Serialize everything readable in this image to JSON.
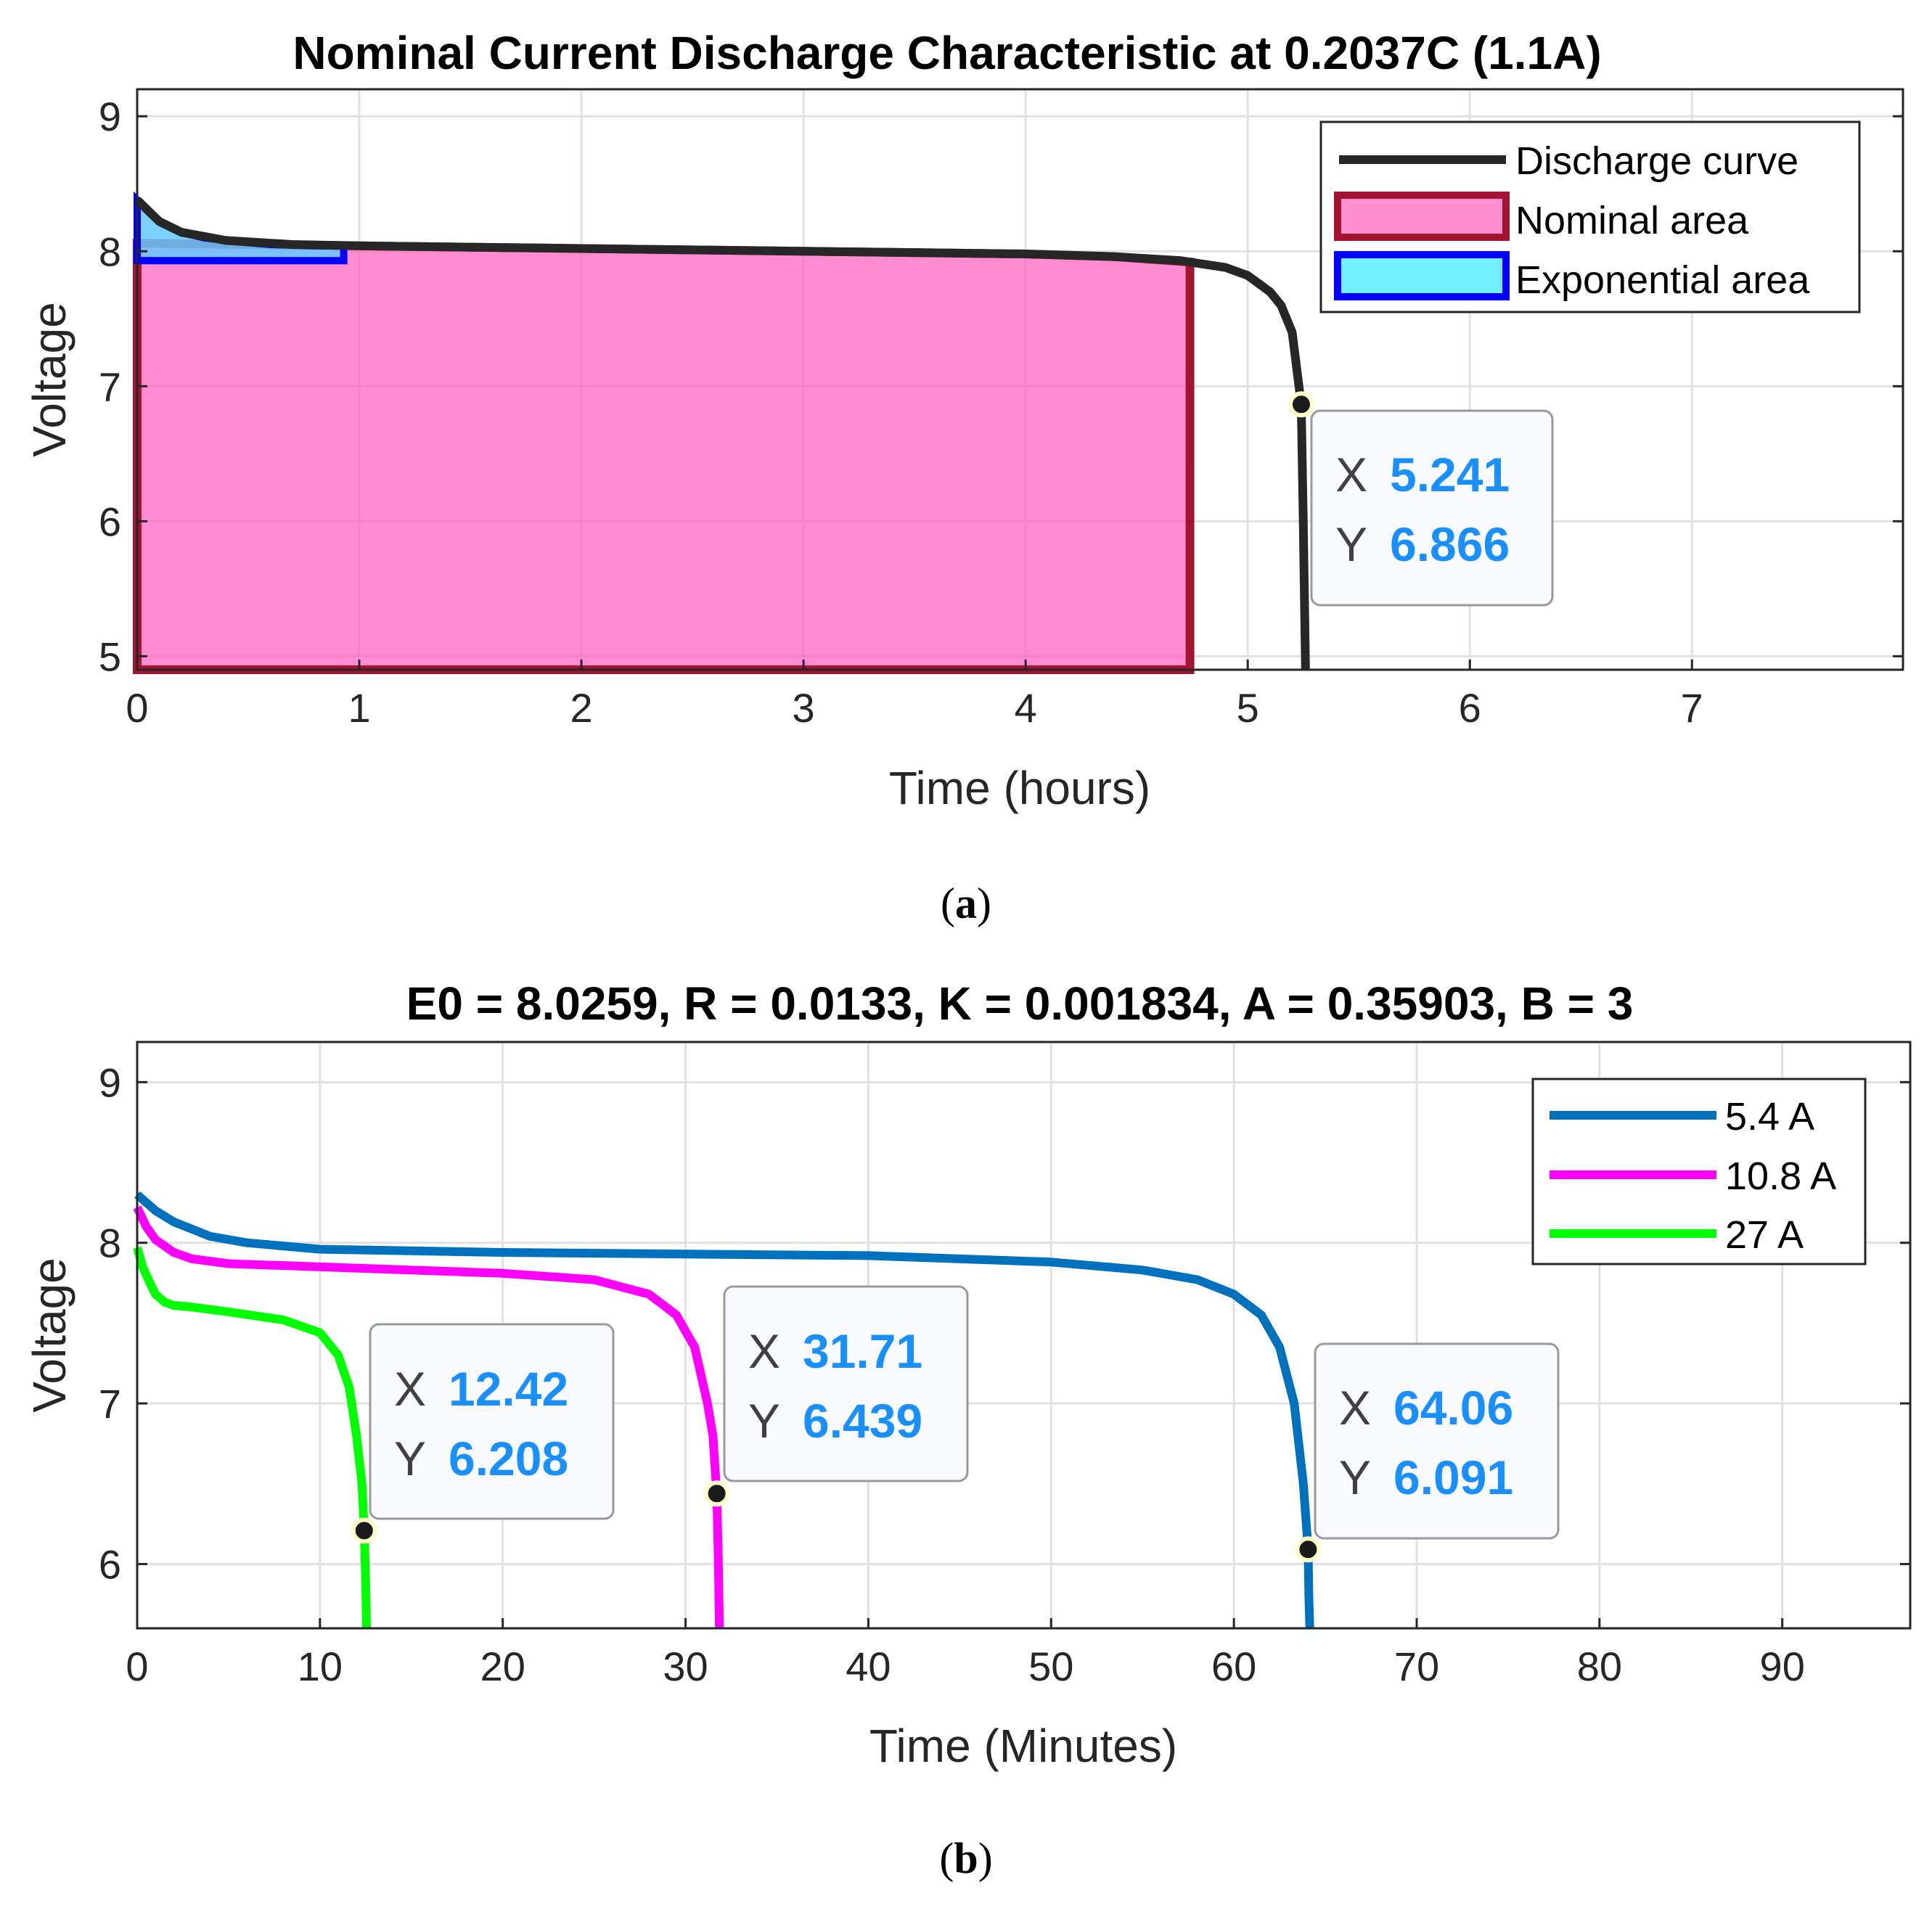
{
  "colors": {
    "discharge": "#262626",
    "nominal_edge": "#a2142f",
    "nominal_fill": "#ff4fb9",
    "exp_edge": "#0000ff",
    "exp_fill": "#66c8ff",
    "series_5_4": "#0072bd",
    "series_10_8": "#ff00ff",
    "series_27": "#00ff00",
    "datatip_value": "#1a8fff"
  },
  "captions": {
    "a": "a",
    "b": "b"
  },
  "chart_data": [
    {
      "type": "line",
      "title": "Nominal Current Discharge Characteristic at 0.2037C (1.1A)",
      "xlabel": "Time (hours)",
      "ylabel": "Voltage",
      "xlim": [
        0,
        7.95
      ],
      "ylim": [
        4.9,
        9.2
      ],
      "xticks": [
        "0",
        "1",
        "2",
        "3",
        "4",
        "5",
        "6",
        "7"
      ],
      "yticks": [
        "5",
        "6",
        "7",
        "8",
        "9"
      ],
      "legend_position": "top-right",
      "legend": [
        "Discharge curve",
        "Nominal area",
        "Exponential area"
      ],
      "series": [
        {
          "name": "Discharge curve",
          "x": [
            0,
            0.1,
            0.2,
            0.4,
            0.7,
            1.0,
            2.0,
            3.0,
            4.0,
            4.4,
            4.7,
            4.9,
            5.0,
            5.1,
            5.15,
            5.2,
            5.241,
            5.25,
            5.26
          ],
          "y": [
            8.38,
            8.22,
            8.14,
            8.08,
            8.05,
            8.04,
            8.02,
            8.0,
            7.98,
            7.96,
            7.93,
            7.88,
            7.82,
            7.7,
            7.6,
            7.4,
            6.866,
            6.0,
            4.9
          ]
        }
      ],
      "nominal_area": {
        "x": [
          0,
          0.5,
          1.0,
          2.0,
          3.0,
          4.0,
          4.4,
          4.74
        ],
        "y": [
          8.06,
          8.05,
          8.04,
          8.02,
          8.0,
          7.98,
          7.96,
          7.92
        ],
        "x_end": 4.74,
        "base": 4.9
      },
      "exponential_area": {
        "x": [
          0,
          0.1,
          0.2,
          0.3,
          0.45,
          0.6,
          0.8,
          0.93
        ],
        "y": [
          8.38,
          8.22,
          8.14,
          8.1,
          8.07,
          8.05,
          8.04,
          8.04
        ],
        "x_end": 0.93,
        "base": 7.93
      },
      "datatips": [
        {
          "x_label": "X",
          "x_value": "5.241",
          "y_label": "Y",
          "y_value": "6.866",
          "x": 5.241,
          "y": 6.866
        }
      ]
    },
    {
      "type": "line",
      "title": "E0 = 8.0259, R = 0.0133, K = 0.001834, A = 0.35903, B = 3",
      "xlabel": "Time (Minutes)",
      "ylabel": "Voltage",
      "xlim": [
        0,
        97
      ],
      "ylim": [
        5.6,
        9.25
      ],
      "xticks": [
        "0",
        "10",
        "20",
        "30",
        "40",
        "50",
        "60",
        "70",
        "80",
        "90"
      ],
      "yticks": [
        "6",
        "7",
        "8",
        "9"
      ],
      "legend_position": "top-right",
      "legend": [
        "5.4 A",
        "10.8 A",
        "27 A"
      ],
      "series": [
        {
          "name": "5.4 A",
          "x": [
            0,
            1,
            2,
            4,
            6,
            10,
            20,
            30,
            40,
            50,
            55,
            58,
            60,
            61.5,
            62.5,
            63.3,
            63.8,
            64.06,
            64.1,
            64.15
          ],
          "y": [
            8.3,
            8.2,
            8.13,
            8.04,
            8.0,
            7.96,
            7.94,
            7.93,
            7.92,
            7.88,
            7.83,
            7.77,
            7.68,
            7.55,
            7.35,
            7.0,
            6.5,
            6.091,
            5.8,
            5.6
          ],
          "color_key": "series_5_4"
        },
        {
          "name": "10.8 A",
          "x": [
            0,
            0.5,
            1,
            2,
            3,
            5,
            10,
            20,
            25,
            28,
            29.5,
            30.5,
            31.2,
            31.5,
            31.71,
            31.8,
            31.85
          ],
          "y": [
            8.22,
            8.1,
            8.02,
            7.94,
            7.9,
            7.87,
            7.85,
            7.81,
            7.77,
            7.68,
            7.55,
            7.35,
            7.0,
            6.8,
            6.439,
            6.0,
            5.6
          ],
          "color_key": "series_10_8"
        },
        {
          "name": "27 A",
          "x": [
            0,
            0.3,
            0.7,
            1,
            1.5,
            2,
            3,
            5,
            8,
            10,
            11,
            11.6,
            12.0,
            12.3,
            12.42,
            12.5,
            12.55
          ],
          "y": [
            7.97,
            7.85,
            7.75,
            7.68,
            7.63,
            7.61,
            7.6,
            7.57,
            7.52,
            7.44,
            7.3,
            7.1,
            6.8,
            6.5,
            6.208,
            5.9,
            5.6
          ],
          "color_key": "series_27"
        }
      ],
      "datatips": [
        {
          "x_label": "X",
          "x_value": "12.42",
          "y_label": "Y",
          "y_value": "6.208",
          "x": 12.42,
          "y": 6.208
        },
        {
          "x_label": "X",
          "x_value": "31.71",
          "y_label": "Y",
          "y_value": "6.439",
          "x": 31.71,
          "y": 6.439
        },
        {
          "x_label": "X",
          "x_value": "64.06",
          "y_label": "Y",
          "y_value": "6.091",
          "x": 64.06,
          "y": 6.091
        }
      ]
    }
  ]
}
